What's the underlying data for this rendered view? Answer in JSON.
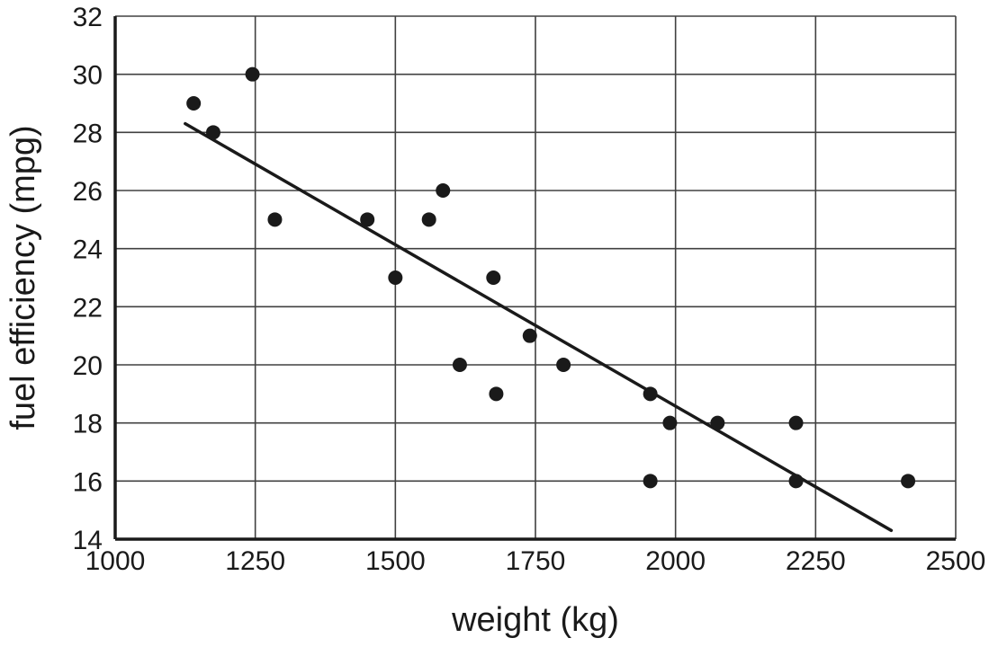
{
  "chart_data": {
    "type": "scatter",
    "title": "",
    "xlabel": "weight (kg)",
    "ylabel": "fuel efficiency (mpg)",
    "xlim": [
      1000,
      2500
    ],
    "ylim": [
      14,
      32
    ],
    "x_ticks": [
      1000,
      1250,
      1500,
      1750,
      2000,
      2250,
      2500
    ],
    "y_ticks": [
      14,
      16,
      18,
      20,
      22,
      24,
      26,
      28,
      30,
      32
    ],
    "grid": true,
    "legend": "none",
    "points": [
      {
        "x": 1140,
        "y": 29
      },
      {
        "x": 1175,
        "y": 28
      },
      {
        "x": 1245,
        "y": 30
      },
      {
        "x": 1285,
        "y": 25
      },
      {
        "x": 1450,
        "y": 25
      },
      {
        "x": 1500,
        "y": 23
      },
      {
        "x": 1560,
        "y": 25
      },
      {
        "x": 1585,
        "y": 26
      },
      {
        "x": 1615,
        "y": 20
      },
      {
        "x": 1675,
        "y": 23
      },
      {
        "x": 1680,
        "y": 19
      },
      {
        "x": 1740,
        "y": 21
      },
      {
        "x": 1800,
        "y": 20
      },
      {
        "x": 1955,
        "y": 19
      },
      {
        "x": 1955,
        "y": 16
      },
      {
        "x": 1990,
        "y": 18
      },
      {
        "x": 2075,
        "y": 18
      },
      {
        "x": 2215,
        "y": 18
      },
      {
        "x": 2215,
        "y": 16
      },
      {
        "x": 2415,
        "y": 16
      }
    ],
    "trend_line": {
      "x1": 1125,
      "y1": 28.3,
      "x2": 2385,
      "y2": 14.3
    },
    "colors": {
      "point": "#1a1a1a",
      "trend": "#1a1a1a",
      "grid": "#404040",
      "axis": "#1a1a1a",
      "text": "#1a1a1a",
      "background": "#ffffff"
    }
  }
}
